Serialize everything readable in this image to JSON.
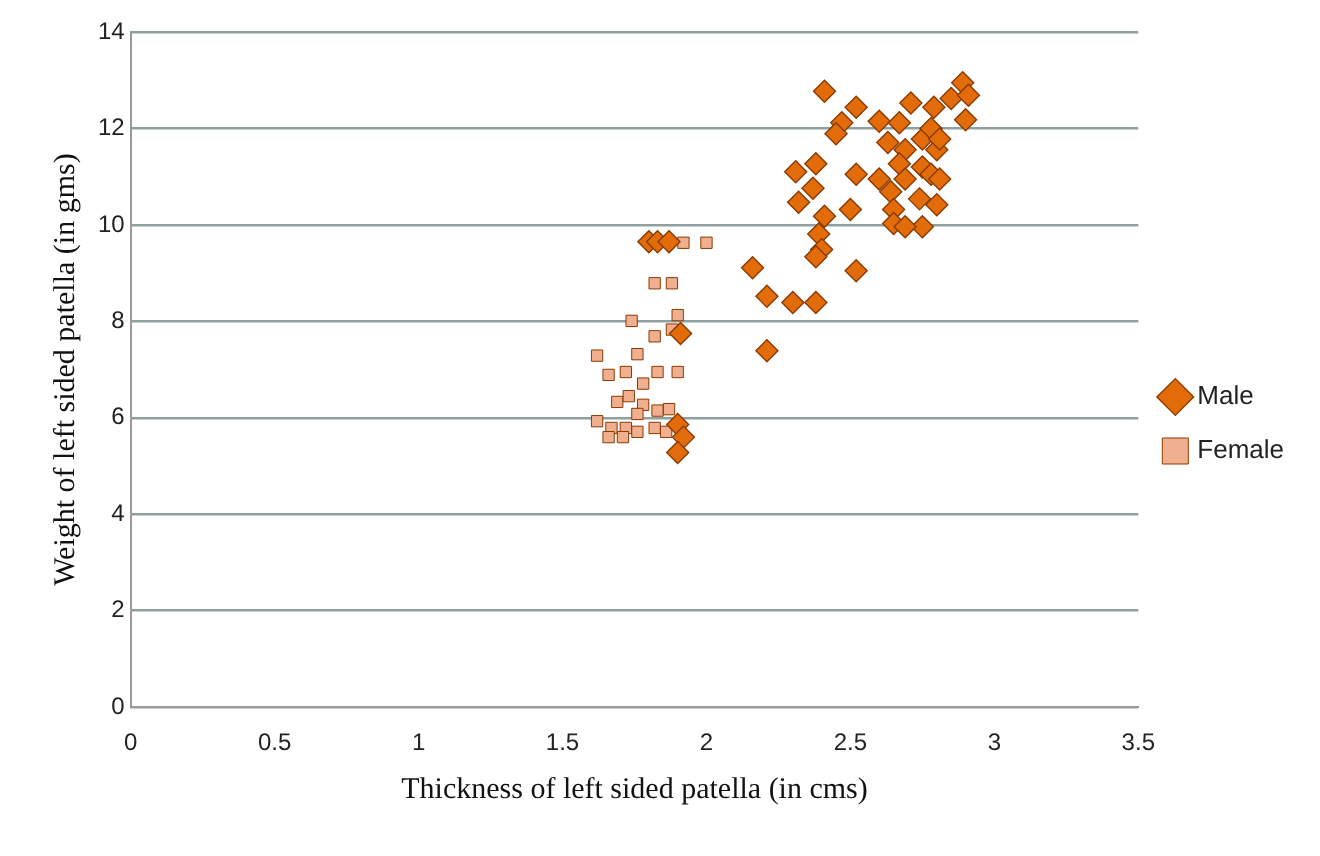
{
  "chart_data": {
    "type": "scatter",
    "xlabel": "Thickness of left sided patella (in cms)",
    "ylabel": "Weight of left sided patella (in gms)",
    "xlim": [
      0,
      3.5
    ],
    "xticks": [
      0,
      0.5,
      1,
      1.5,
      2,
      2.5,
      3,
      3.5
    ],
    "ylim": [
      0,
      14
    ],
    "yticks": [
      0,
      2,
      4,
      6,
      8,
      10,
      12,
      14
    ],
    "grid": "y",
    "legend": "right",
    "series": [
      {
        "name": "Male",
        "color": "#e36c0a",
        "marker": "diamond",
        "x": [
          2.41,
          2.52,
          2.47,
          2.45,
          2.6,
          2.67,
          2.71,
          2.79,
          2.89,
          2.85,
          2.91,
          2.9,
          2.63,
          2.69,
          2.75,
          2.8,
          2.78,
          2.81,
          2.67,
          2.75,
          2.31,
          2.38,
          2.52,
          2.6,
          2.69,
          2.78,
          2.81,
          2.37,
          2.32,
          2.41,
          2.5,
          2.64,
          2.65,
          2.74,
          2.8,
          2.65,
          2.75,
          2.69,
          2.39,
          2.4,
          2.38,
          2.52,
          2.16,
          2.21,
          2.3,
          2.38,
          2.21,
          1.8,
          1.83,
          1.87,
          1.9,
          1.92,
          1.9,
          1.91
        ],
        "values": [
          12.77,
          12.44,
          12.12,
          11.89,
          12.15,
          12.12,
          12.53,
          12.44,
          12.95,
          12.62,
          12.69,
          12.18,
          11.71,
          11.56,
          11.78,
          11.56,
          12.0,
          11.78,
          11.27,
          11.2,
          11.1,
          11.27,
          11.05,
          10.95,
          10.95,
          11.05,
          10.95,
          10.76,
          10.47,
          10.18,
          10.32,
          10.69,
          10.32,
          10.54,
          10.42,
          10.03,
          9.96,
          9.96,
          9.81,
          9.49,
          9.34,
          9.05,
          9.11,
          8.52,
          8.39,
          8.39,
          7.39,
          9.65,
          9.65,
          9.65,
          5.86,
          5.6,
          5.28,
          7.75
        ]
      },
      {
        "name": "Female",
        "color": "#f0b090",
        "marker": "square",
        "x": [
          1.92,
          2.0,
          1.82,
          1.88,
          1.74,
          1.9,
          1.88,
          1.82,
          1.62,
          1.76,
          1.66,
          1.72,
          1.78,
          1.83,
          1.9,
          1.69,
          1.73,
          1.78,
          1.83,
          1.87,
          1.62,
          1.67,
          1.72,
          1.76,
          1.66,
          1.71,
          1.82,
          1.76,
          1.86
        ],
        "values": [
          9.63,
          9.63,
          8.79,
          8.79,
          8.01,
          8.13,
          7.83,
          7.69,
          7.29,
          7.32,
          6.89,
          6.95,
          6.71,
          6.95,
          6.95,
          6.33,
          6.45,
          6.27,
          6.15,
          6.18,
          5.93,
          5.79,
          5.79,
          5.71,
          5.6,
          5.6,
          5.79,
          6.08,
          5.71
        ]
      }
    ]
  }
}
